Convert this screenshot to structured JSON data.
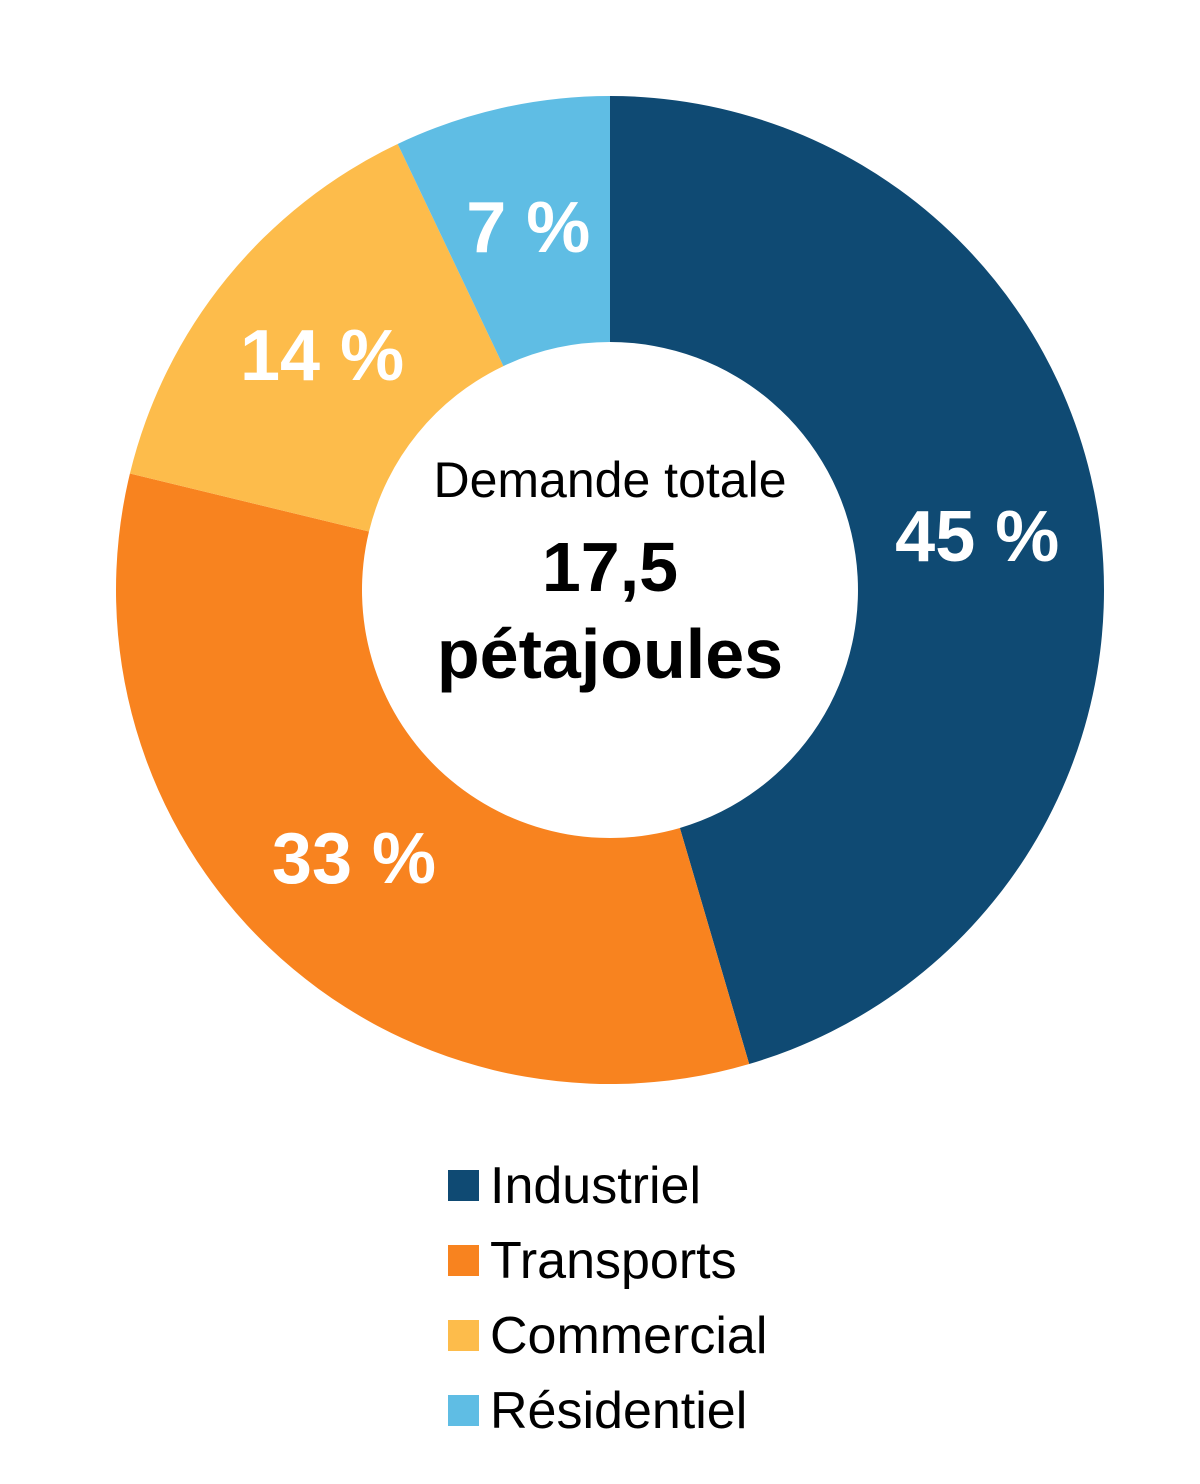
{
  "chart_data": {
    "type": "pie",
    "subtype": "donut",
    "title": "",
    "categories": [
      "Industriel",
      "Transports",
      "Commercial",
      "Résidentiel"
    ],
    "values": [
      45,
      33,
      14,
      7
    ],
    "value_labels": [
      "45 %",
      "33 %",
      "14 %",
      "7 %"
    ],
    "colors": [
      "#0f4a73",
      "#f8831f",
      "#fdbc4b",
      "#5fbde4"
    ],
    "units": "percent",
    "start_angle_deg": 0,
    "direction": "clockwise",
    "legend_position": "bottom",
    "center_label": {
      "title": "Demande totale",
      "value": "17,5",
      "unit": "pétajoules"
    }
  }
}
